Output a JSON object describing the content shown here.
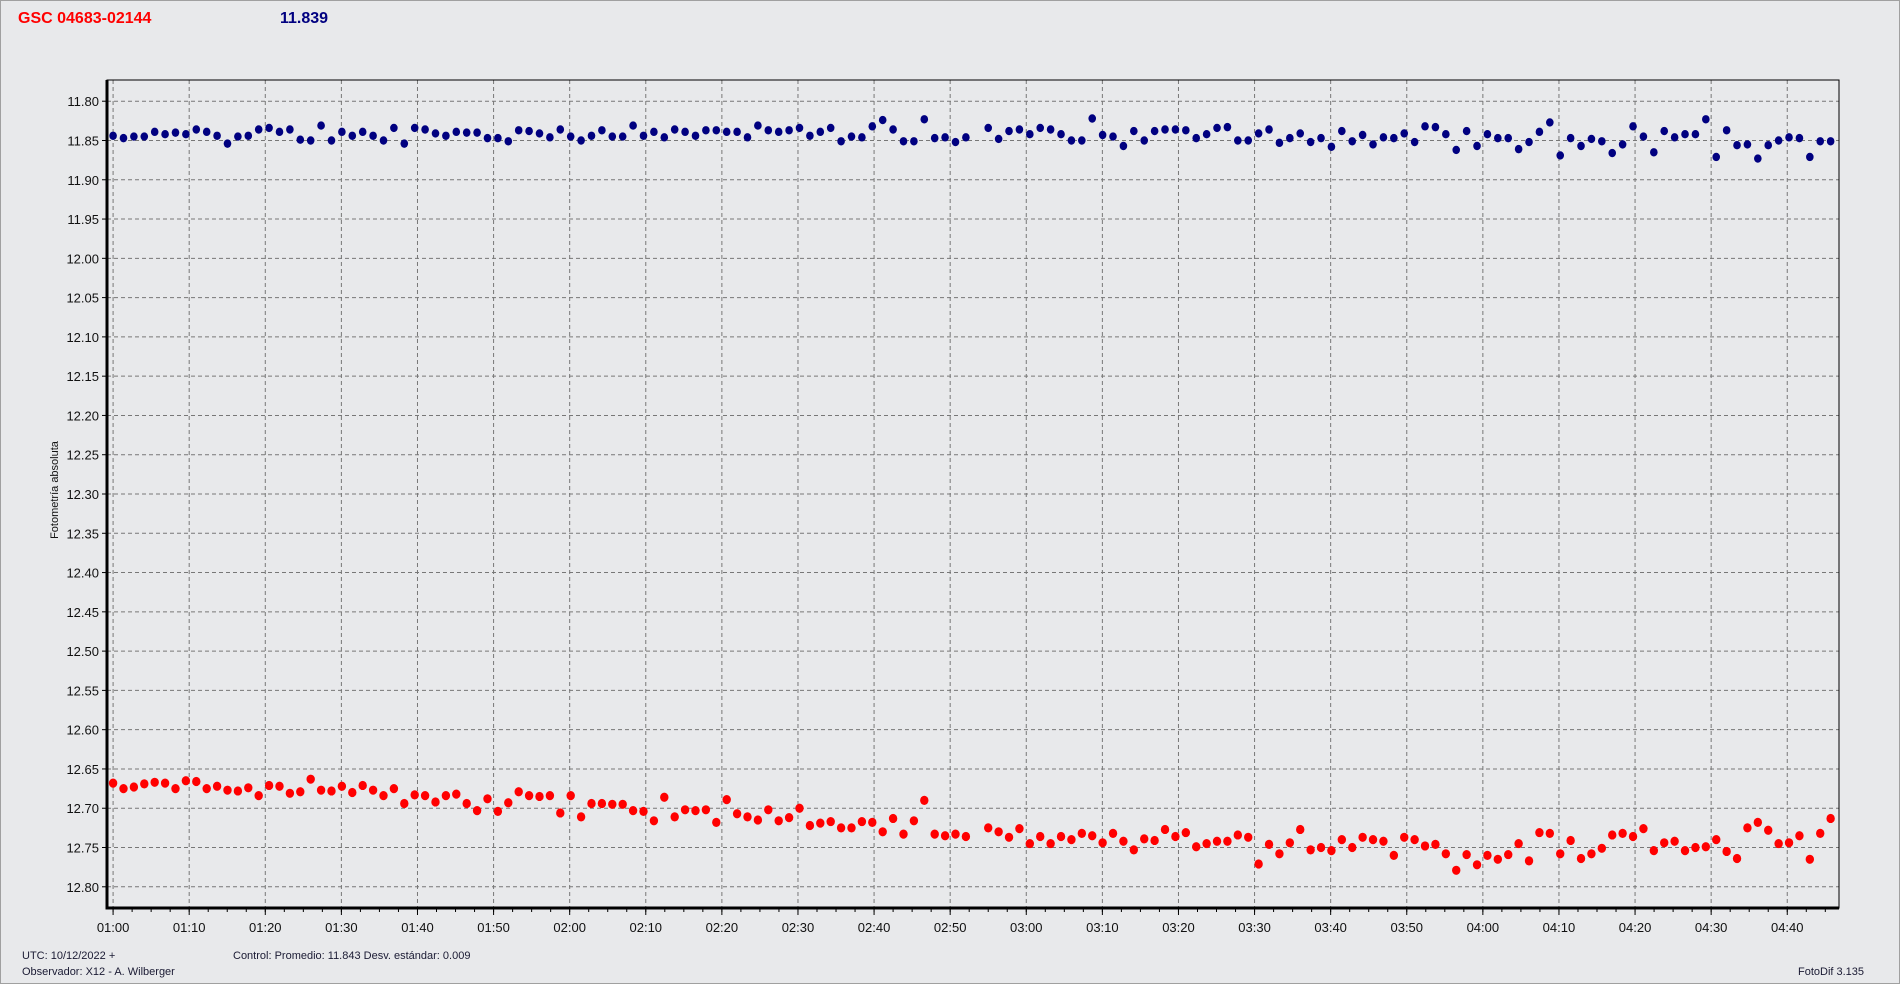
{
  "header": {
    "star": "GSC 04683-02144",
    "value": "11.839",
    "star_color": "#ff0000",
    "value_color": "#000080"
  },
  "footer": {
    "utc": "UTC: 10/12/2022 +",
    "observer": "Observador: X12 - A. Wilberger",
    "control": "Control: Promedio: 11.843  Desv. estándar: 0.009",
    "software": "FotoDif 3.135"
  },
  "chart_data": {
    "type": "scatter",
    "title": "",
    "xlabel": "",
    "ylabel": "Fotometría absoluta",
    "y_inverted": true,
    "ylim": [
      11.773,
      12.827
    ],
    "xlim": [
      "00:59:12",
      "04:46:48"
    ],
    "yticks": [
      "11.80",
      "11.85",
      "11.90",
      "11.95",
      "12.00",
      "12.05",
      "12.10",
      "12.15",
      "12.20",
      "12.25",
      "12.30",
      "12.35",
      "12.40",
      "12.45",
      "12.50",
      "12.55",
      "12.60",
      "12.65",
      "12.70",
      "12.75",
      "12.80"
    ],
    "xticks": [
      "01:00",
      "01:10",
      "01:20",
      "01:30",
      "01:40",
      "01:50",
      "02:00",
      "02:10",
      "02:20",
      "02:30",
      "02:40",
      "02:50",
      "03:00",
      "03:10",
      "03:20",
      "03:30",
      "03:40",
      "03:50",
      "04:00",
      "04:10",
      "04:20",
      "04:30",
      "04:40"
    ],
    "grid": true,
    "x": [
      "01:00:00",
      "01:01:22",
      "01:02:44",
      "01:04:06",
      "01:05:28",
      "01:06:50",
      "01:08:12",
      "01:09:34",
      "01:10:56",
      "01:12:18",
      "01:13:40",
      "01:15:02",
      "01:16:24",
      "01:17:46",
      "01:19:08",
      "01:20:30",
      "01:21:52",
      "01:23:14",
      "01:24:36",
      "01:25:58",
      "01:27:20",
      "01:28:42",
      "01:30:04",
      "01:31:26",
      "01:32:48",
      "01:34:10",
      "01:35:32",
      "01:36:54",
      "01:38:16",
      "01:39:38",
      "01:41:00",
      "01:42:22",
      "01:43:44",
      "01:45:06",
      "01:46:28",
      "01:47:50",
      "01:49:12",
      "01:50:34",
      "01:51:56",
      "01:53:18",
      "01:54:40",
      "01:56:02",
      "01:57:24",
      "01:58:46",
      "02:00:08",
      "02:01:30",
      "02:02:52",
      "02:04:14",
      "02:05:36",
      "02:06:58",
      "02:08:20",
      "02:09:42",
      "02:11:04",
      "02:12:26",
      "02:13:48",
      "02:15:10",
      "02:16:32",
      "02:17:54",
      "02:19:16",
      "02:20:38",
      "02:22:00",
      "02:23:22",
      "02:24:44",
      "02:26:06",
      "02:27:28",
      "02:28:50",
      "02:30:12",
      "02:31:34",
      "02:32:56",
      "02:34:18",
      "02:35:40",
      "02:37:02",
      "02:38:24",
      "02:39:46",
      "02:41:08",
      "02:42:30",
      "02:43:52",
      "02:45:14",
      "02:46:36",
      "02:47:58",
      "02:49:20",
      "02:50:42",
      "02:52:04",
      "02:55:00",
      "02:56:22",
      "02:57:44",
      "02:59:06",
      "03:00:28",
      "03:01:50",
      "03:03:12",
      "03:04:34",
      "03:05:56",
      "03:07:18",
      "03:08:40",
      "03:10:02",
      "03:11:24",
      "03:12:46",
      "03:14:08",
      "03:15:30",
      "03:16:52",
      "03:18:14",
      "03:19:36",
      "03:20:58",
      "03:22:20",
      "03:23:42",
      "03:25:04",
      "03:26:26",
      "03:27:48",
      "03:29:10",
      "03:30:32",
      "03:31:54",
      "03:33:16",
      "03:34:38",
      "03:36:00",
      "03:37:22",
      "03:38:44",
      "03:40:06",
      "03:41:28",
      "03:42:50",
      "03:44:12",
      "03:45:34",
      "03:46:56",
      "03:48:18",
      "03:49:40",
      "03:51:02",
      "03:52:24",
      "03:53:46",
      "03:55:08",
      "03:56:30",
      "03:57:52",
      "03:59:14",
      "04:00:36",
      "04:01:58",
      "04:03:20",
      "04:04:42",
      "04:06:04",
      "04:07:26",
      "04:08:48",
      "04:10:10",
      "04:11:32",
      "04:12:54",
      "04:14:16",
      "04:15:38",
      "04:17:00",
      "04:18:22",
      "04:19:44",
      "04:21:06",
      "04:22:28",
      "04:23:50",
      "04:25:12",
      "04:26:34",
      "04:27:56",
      "04:29:18",
      "04:30:40",
      "04:32:02",
      "04:33:24",
      "04:34:46",
      "04:36:08",
      "04:37:30",
      "04:38:52",
      "04:40:14",
      "04:41:36",
      "04:42:58",
      "04:44:20",
      "04:45:42"
    ],
    "series": [
      {
        "color": "#000080",
        "values": [
          11.844,
          11.847,
          11.845,
          11.845,
          11.839,
          11.842,
          11.84,
          11.842,
          11.836,
          11.839,
          11.844,
          11.854,
          11.845,
          11.844,
          11.836,
          11.834,
          11.839,
          11.836,
          11.849,
          11.85,
          11.831,
          11.85,
          11.839,
          11.844,
          11.839,
          11.844,
          11.85,
          11.834,
          11.854,
          11.834,
          11.836,
          11.841,
          11.844,
          11.839,
          11.84,
          11.84,
          11.847,
          11.847,
          11.851,
          11.837,
          11.838,
          11.841,
          11.846,
          11.836,
          11.845,
          11.85,
          11.844,
          11.837,
          11.845,
          11.845,
          11.831,
          11.844,
          11.839,
          11.846,
          11.836,
          11.839,
          11.844,
          11.837,
          11.837,
          11.839,
          11.839,
          11.846,
          11.831,
          11.837,
          11.839,
          11.837,
          11.834,
          11.844,
          11.839,
          11.834,
          11.851,
          11.845,
          11.846,
          11.832,
          11.824,
          11.836,
          11.851,
          11.851,
          11.823,
          11.847,
          11.846,
          11.852,
          11.846,
          11.834,
          11.848,
          11.838,
          11.836,
          11.842,
          11.834,
          11.836,
          11.842,
          11.85,
          11.85,
          11.822,
          11.843,
          11.845,
          11.857,
          11.838,
          11.85,
          11.838,
          11.836,
          11.836,
          11.837,
          11.847,
          11.842,
          11.834,
          11.833,
          11.85,
          11.85,
          11.841,
          11.836,
          11.853,
          11.847,
          11.841,
          11.852,
          11.847,
          11.858,
          11.838,
          11.851,
          11.843,
          11.855,
          11.846,
          11.847,
          11.841,
          11.852,
          11.832,
          11.833,
          11.842,
          11.862,
          11.838,
          11.857,
          11.842,
          11.847,
          11.847,
          11.861,
          11.852,
          11.839,
          11.827,
          11.869,
          11.847,
          11.857,
          11.848,
          11.851,
          11.866,
          11.855,
          11.832,
          11.845,
          11.865,
          11.838,
          11.846,
          11.842,
          11.842,
          11.823,
          11.871,
          11.837,
          11.856,
          11.855,
          11.873,
          11.856,
          11.85,
          11.846,
          11.847,
          11.871,
          11.851,
          11.851
        ]
      },
      {
        "color": "#ff0000",
        "values": [
          12.668,
          12.675,
          12.673,
          12.669,
          12.667,
          12.668,
          12.675,
          12.665,
          12.666,
          12.675,
          12.672,
          12.677,
          12.678,
          12.674,
          12.684,
          12.671,
          12.672,
          12.681,
          12.679,
          12.663,
          12.677,
          12.678,
          12.672,
          12.68,
          12.671,
          12.677,
          12.684,
          12.675,
          12.694,
          12.683,
          12.684,
          12.692,
          12.684,
          12.682,
          12.694,
          12.703,
          12.688,
          12.704,
          12.693,
          12.679,
          12.684,
          12.685,
          12.684,
          12.706,
          12.684,
          12.711,
          12.694,
          12.694,
          12.695,
          12.695,
          12.703,
          12.704,
          12.716,
          12.686,
          12.711,
          12.702,
          12.703,
          12.702,
          12.718,
          12.689,
          12.707,
          12.711,
          12.715,
          12.702,
          12.716,
          12.712,
          12.7,
          12.722,
          12.719,
          12.717,
          12.725,
          12.725,
          12.717,
          12.718,
          12.73,
          12.713,
          12.733,
          12.716,
          12.69,
          12.733,
          12.735,
          12.733,
          12.736,
          12.725,
          12.73,
          12.737,
          12.726,
          12.745,
          12.736,
          12.745,
          12.736,
          12.74,
          12.732,
          12.735,
          12.744,
          12.732,
          12.742,
          12.753,
          12.739,
          12.741,
          12.727,
          12.736,
          12.731,
          12.749,
          12.745,
          12.742,
          12.742,
          12.734,
          12.737,
          12.771,
          12.746,
          12.758,
          12.744,
          12.727,
          12.753,
          12.75,
          12.754,
          12.74,
          12.75,
          12.737,
          12.74,
          12.742,
          12.76,
          12.737,
          12.74,
          12.748,
          12.746,
          12.758,
          12.779,
          12.759,
          12.772,
          12.76,
          12.765,
          12.759,
          12.745,
          12.767,
          12.731,
          12.732,
          12.758,
          12.741,
          12.764,
          12.758,
          12.751,
          12.734,
          12.732,
          12.736,
          12.726,
          12.754,
          12.744,
          12.742,
          12.754,
          12.75,
          12.749,
          12.74,
          12.755,
          12.764,
          12.725,
          12.718,
          12.728,
          12.745,
          12.744,
          12.735,
          12.765,
          12.732,
          12.713
        ]
      }
    ]
  }
}
